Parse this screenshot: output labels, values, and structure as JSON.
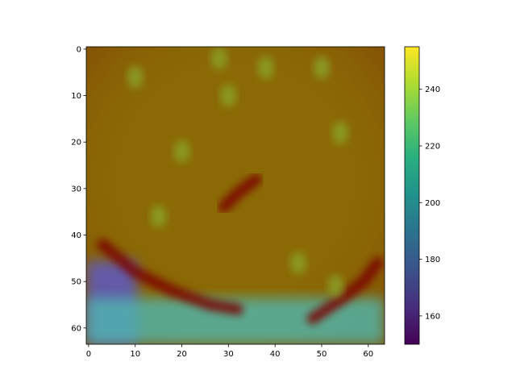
{
  "chart_data": {
    "type": "heatmap",
    "description_style": "image with semi-transparent heatmap overlay",
    "x_ticks": [
      0,
      10,
      20,
      30,
      40,
      50,
      60
    ],
    "y_ticks": [
      0,
      10,
      20,
      30,
      40,
      50,
      60
    ],
    "xlim": [
      -0.5,
      63.5
    ],
    "ylim": [
      63.5,
      -0.5
    ],
    "grid_size": [
      64,
      64
    ],
    "colorbar": {
      "colormap": "viridis",
      "ticks": [
        160,
        180,
        200,
        220,
        240
      ],
      "range": [
        150,
        255
      ]
    },
    "overlay_regions": [
      {
        "label": "bright bottom-left",
        "x_range": [
          0,
          10
        ],
        "y_range": [
          46,
          63
        ],
        "value": 168
      },
      {
        "label": "cyan band",
        "x_range": [
          0,
          63
        ],
        "y_range": [
          54,
          63
        ],
        "value": 205
      },
      {
        "label": "dark red arc",
        "points": [
          [
            3,
            42
          ],
          [
            10,
            48
          ],
          [
            18,
            52
          ],
          [
            26,
            55
          ],
          [
            32,
            56
          ]
        ],
        "tone": "dark-red"
      },
      {
        "label": "dark red streak center",
        "points": [
          [
            29,
            34
          ],
          [
            32,
            31
          ],
          [
            36,
            28
          ]
        ],
        "tone": "dark-red"
      },
      {
        "label": "dark red right arc",
        "points": [
          [
            48,
            58
          ],
          [
            54,
            54
          ],
          [
            59,
            50
          ],
          [
            62,
            46
          ]
        ],
        "tone": "dark-red"
      },
      {
        "label": "green blotches",
        "points": [
          [
            10,
            6
          ],
          [
            28,
            2
          ],
          [
            30,
            10
          ],
          [
            38,
            4
          ],
          [
            50,
            4
          ],
          [
            54,
            18
          ],
          [
            20,
            22
          ],
          [
            15,
            36
          ],
          [
            45,
            46
          ],
          [
            53,
            51
          ]
        ],
        "tone": "green"
      }
    ]
  }
}
